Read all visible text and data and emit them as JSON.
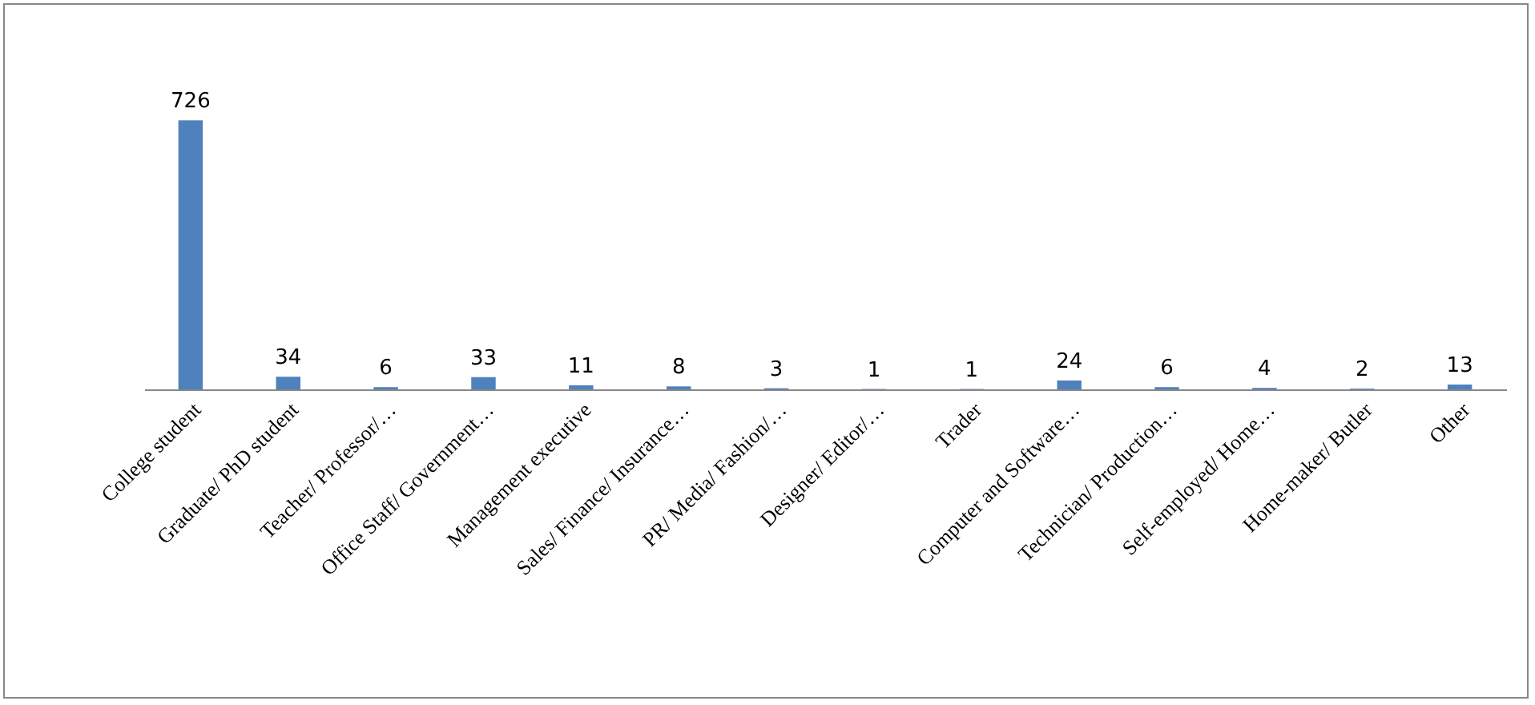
{
  "chart_data": {
    "type": "bar",
    "categories": [
      "College student",
      "Graduate/ PhD student",
      "Teacher/ Professor/…",
      "Office Staff/ Government…",
      "Management executive",
      "Sales/ Finance/ Insurance…",
      "PR/ Media/ Fashion/…",
      "Designer/ Editor/…",
      "Trader",
      "Computer and Software…",
      "Technician/ Production…",
      "Self-employed/ Home…",
      "Home-maker/ Butler",
      "Other"
    ],
    "values": [
      726,
      34,
      6,
      33,
      11,
      8,
      3,
      1,
      1,
      24,
      6,
      4,
      2,
      13
    ],
    "color": "#4f81bd",
    "data_labels": true,
    "tick_labels": "x"
  }
}
